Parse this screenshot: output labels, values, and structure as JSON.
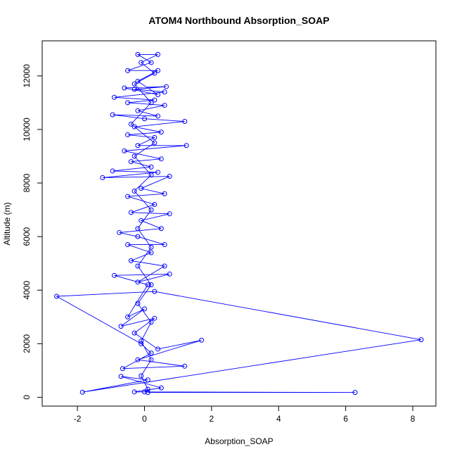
{
  "chart_data": {
    "type": "line",
    "title": "ATOM4 Northbound Absorption_SOAP",
    "x_label": "Absorption_SOAP",
    "y_label": "Altitude (m)",
    "xlim": [
      -3.05,
      8.69
    ],
    "ylim": [
      -330,
      13310
    ],
    "xticks": [
      -2,
      0,
      2,
      4,
      6,
      8
    ],
    "yticks": [
      0,
      2000,
      4000,
      6000,
      8000,
      10000,
      12000
    ],
    "markers": true,
    "series": [
      {
        "color": "#0000ff",
        "x": [
          0.1,
          6.28,
          -0.3,
          0.5,
          -0.7,
          0.1,
          -1.85,
          8.25,
          0.3,
          -2.62,
          -0.1,
          0.2,
          -0.65,
          1.2,
          -0.2,
          1.7,
          0.4,
          -0.3,
          0.3,
          -0.7,
          0.0,
          -0.5,
          0.1,
          -0.9,
          0.75,
          -0.2,
          0.6,
          -0.4,
          0.2,
          -0.5,
          0.6,
          -0.2,
          -0.75,
          0.5,
          -0.1,
          0.75,
          -0.4,
          0.3,
          -0.5,
          0.6,
          -0.1,
          0.75,
          -1.25,
          0.4,
          -0.95,
          0.2,
          -0.4,
          0.5,
          -0.6,
          1.25,
          -0.2,
          0.3,
          -0.5,
          0.5,
          -0.3,
          1.2,
          0.0,
          -0.95,
          0.4,
          -0.2,
          0.6,
          -0.5,
          0.3,
          -0.9,
          0.6,
          -0.3,
          0.65,
          -0.6,
          0.4,
          -0.2,
          0.4,
          -0.5,
          0.2,
          -0.2,
          0.4,
          -0.1,
          0.3,
          -0.3,
          0.2,
          -0.4,
          0.3,
          -0.3,
          0.2,
          -0.3,
          0.2,
          -0.2,
          0.2,
          -0.2,
          0.2,
          -0.2,
          0.2,
          -0.1,
          0.2,
          -0.1,
          0.1,
          0.0
        ],
        "values": [
          180,
          180,
          200,
          350,
          780,
          650,
          190,
          2150,
          3950,
          3770,
          2000,
          1650,
          1070,
          1160,
          1400,
          2130,
          1800,
          2400,
          2950,
          2650,
          3300,
          3000,
          4200,
          4550,
          4600,
          4300,
          4900,
          5100,
          5400,
          5700,
          5700,
          6000,
          6150,
          6300,
          6600,
          6850,
          6900,
          7200,
          7500,
          7600,
          7800,
          8250,
          8200,
          8400,
          8450,
          8600,
          8800,
          8900,
          9200,
          9400,
          9400,
          9700,
          9800,
          9900,
          10100,
          10300,
          10400,
          10550,
          10500,
          10700,
          10900,
          11000,
          11100,
          11200,
          11400,
          11500,
          11600,
          11550,
          11300,
          11800,
          12200,
          12200,
          12500,
          12800,
          12800,
          12500,
          12100,
          11700,
          11000,
          10200,
          9500,
          9000,
          8300,
          7700,
          7000,
          6300,
          5600,
          4900,
          4200,
          3500,
          2800,
          2100,
          1400,
          800,
          300,
          200
        ]
      }
    ]
  }
}
